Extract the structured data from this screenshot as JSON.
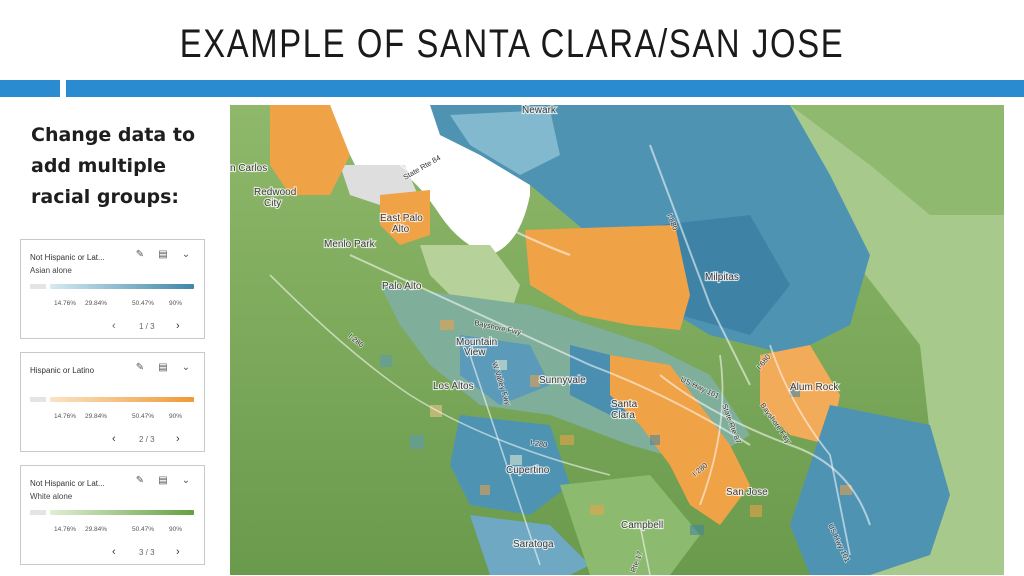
{
  "slide": {
    "title": "EXAMPLE OF SANTA CLARA/SAN JOSE",
    "side_text_lines": [
      "Change data to",
      "add multiple",
      "racial groups:"
    ]
  },
  "colors": {
    "accent_bar": "#2a8bd0",
    "asian_ramp": [
      "#d6eaf1",
      "#3f86a8"
    ],
    "hispanic_ramp": [
      "#fbe3c4",
      "#ef9a35"
    ],
    "white_ramp": [
      "#e0efd3",
      "#62a041"
    ]
  },
  "legend_cards": [
    {
      "line1": "Not Hispanic or Lat...",
      "line2": "Asian alone",
      "ticks": [
        "14.76%",
        "29.84%",
        "50.47%",
        "90%"
      ],
      "page": "1 / 3",
      "icons": [
        "pencil-icon",
        "columns-icon",
        "chevrons-down-icon"
      ]
    },
    {
      "line1": "Hispanic or Latino",
      "line2": "",
      "ticks": [
        "14.76%",
        "29.84%",
        "50.47%",
        "90%"
      ],
      "page": "2 / 3",
      "icons": [
        "pencil-icon",
        "columns-icon",
        "chevrons-down-icon"
      ]
    },
    {
      "line1": "Not Hispanic or Lat...",
      "line2": "White alone",
      "ticks": [
        "14.76%",
        "29.84%",
        "50.47%",
        "90%"
      ],
      "page": "3 / 3",
      "icons": [
        "pencil-icon",
        "columns-icon",
        "chevrons-down-icon"
      ]
    }
  ],
  "map": {
    "places": [
      "Newark",
      "n Carlos",
      "Redwood",
      "City",
      "East Palo",
      "Alto",
      "Menlo Park",
      "Palo Alto",
      "Milpitas",
      "Mountain",
      "View",
      "Los Altos",
      "Sunnyvale",
      "Santa",
      "Clara",
      "Alum Rock",
      "Cupertino",
      "San Jose",
      "Campbell",
      "Saratoga"
    ],
    "roads": [
      "State Rte 84",
      "I-880",
      "Bayshore Fwy",
      "I-280",
      "W Valley Fwy",
      "US Hwy 101",
      "State Rte 87",
      "I-680",
      "Bayshore Fwy",
      "I-280",
      "I-280",
      "US Hwy 101",
      "Rte 17"
    ]
  }
}
